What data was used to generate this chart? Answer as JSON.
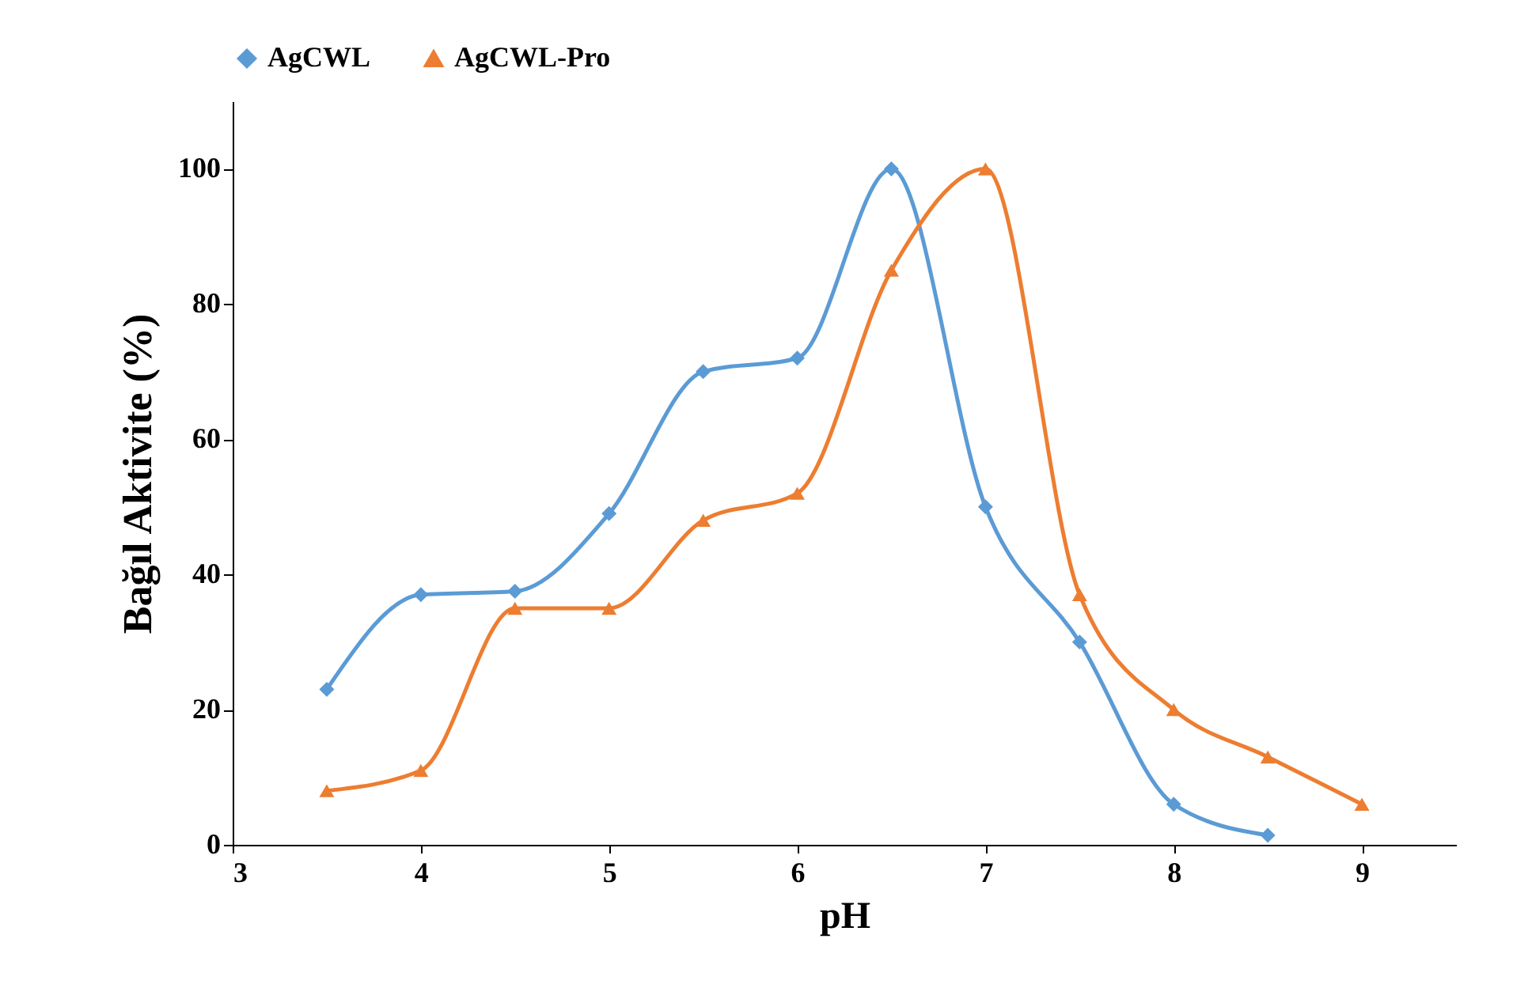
{
  "chart_data": {
    "type": "line",
    "xlabel": "pH",
    "ylabel": "Bağıl Aktivite (%)",
    "xlim": [
      3,
      9.5
    ],
    "xticks": [
      3,
      4,
      5,
      6,
      7,
      8,
      9
    ],
    "ylim": [
      0,
      110
    ],
    "yticks": [
      0,
      20,
      40,
      60,
      80,
      100
    ],
    "grid": false,
    "legend": "top",
    "line_style": "solid",
    "series": [
      {
        "name": "AgCWL",
        "color": "#5b9bd5",
        "marker": "diamond",
        "x": [
          3.5,
          4,
          4.5,
          5,
          5.5,
          6,
          6.5,
          7,
          7.5,
          8,
          8.5
        ],
        "values": [
          23,
          37,
          37.5,
          49,
          70,
          72,
          100,
          50,
          30,
          6,
          1.4
        ]
      },
      {
        "name": "AgCWL-Pro",
        "color": "#ed7d31",
        "marker": "triangle",
        "x": [
          3.5,
          4,
          4.5,
          5,
          5.5,
          6,
          6.5,
          7,
          7.5,
          8,
          8.5,
          9
        ],
        "values": [
          8,
          11,
          35,
          35,
          48,
          52,
          85,
          100,
          37,
          20,
          13,
          6
        ]
      }
    ]
  }
}
